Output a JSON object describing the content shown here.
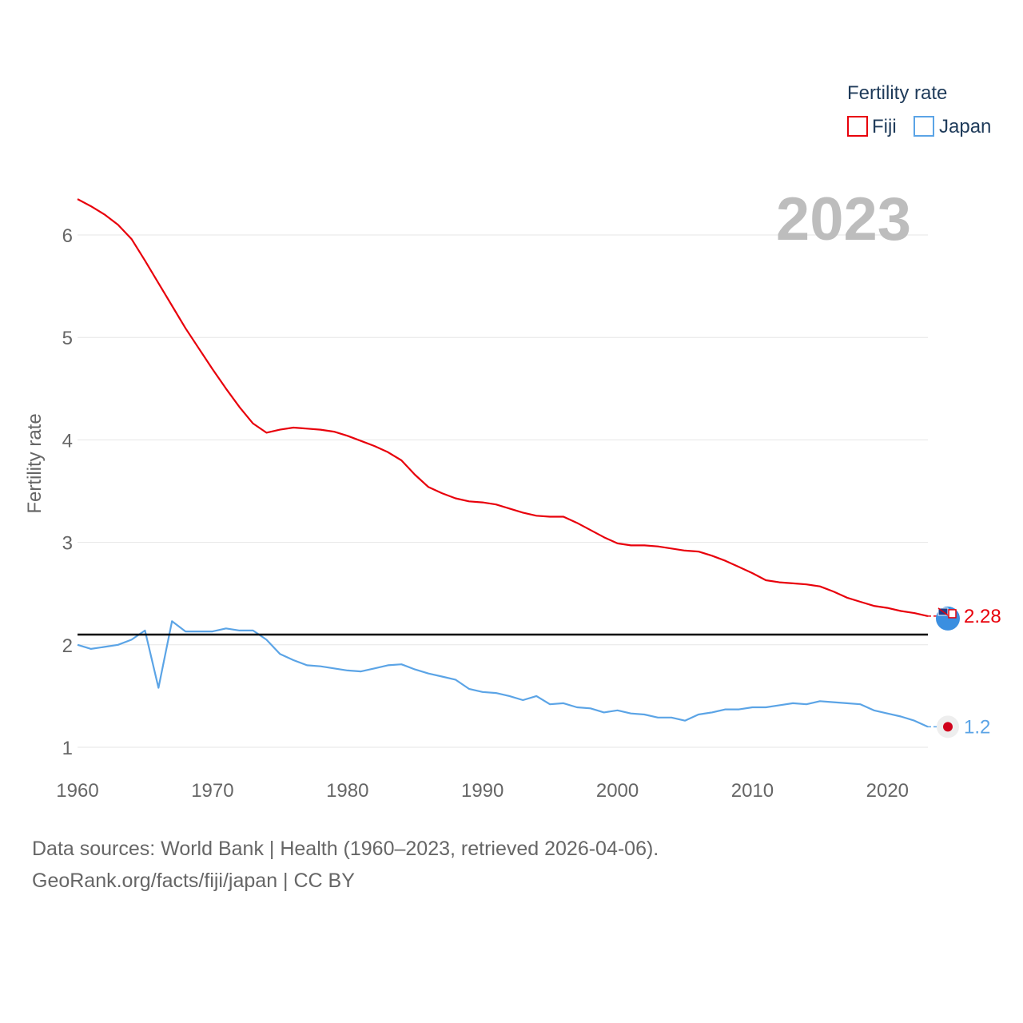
{
  "legend": {
    "title": "Fertility rate"
  },
  "year_label": "2023",
  "footer": {
    "sources": "Data sources: World Bank | Health (1960–2023, retrieved 2026-04-06).",
    "credit": "GeoRank.org/facts/fiji/japan | CC BY"
  },
  "colors": {
    "fiji": "#e8000b",
    "japan": "#5ba4e6",
    "reference": "#000000",
    "grid": "#e6e6e6",
    "axis_text": "#666666",
    "year": "#bdbdbd"
  },
  "chart_data": {
    "type": "line",
    "title": "",
    "xlabel": "",
    "ylabel": "Fertility rate",
    "xlim": [
      1960,
      2023
    ],
    "ylim": [
      0.75,
      6.75
    ],
    "x_ticks": [
      1960,
      1970,
      1980,
      1990,
      2000,
      2010,
      2020
    ],
    "y_ticks": [
      1,
      2,
      3,
      4,
      5,
      6
    ],
    "reference_line": 2.1,
    "x": [
      1960,
      1961,
      1962,
      1963,
      1964,
      1965,
      1966,
      1967,
      1968,
      1969,
      1970,
      1971,
      1972,
      1973,
      1974,
      1975,
      1976,
      1977,
      1978,
      1979,
      1980,
      1981,
      1982,
      1983,
      1984,
      1985,
      1986,
      1987,
      1988,
      1989,
      1990,
      1991,
      1992,
      1993,
      1994,
      1995,
      1996,
      1997,
      1998,
      1999,
      2000,
      2001,
      2002,
      2003,
      2004,
      2005,
      2006,
      2007,
      2008,
      2009,
      2010,
      2011,
      2012,
      2013,
      2014,
      2015,
      2016,
      2017,
      2018,
      2019,
      2020,
      2021,
      2022,
      2023
    ],
    "series": [
      {
        "name": "Fiji",
        "end_label": "2.28",
        "values": [
          6.35,
          6.28,
          6.2,
          6.1,
          5.96,
          5.75,
          5.53,
          5.31,
          5.09,
          4.89,
          4.69,
          4.5,
          4.32,
          4.16,
          4.07,
          4.1,
          4.12,
          4.11,
          4.1,
          4.08,
          4.04,
          3.99,
          3.94,
          3.88,
          3.8,
          3.66,
          3.54,
          3.48,
          3.43,
          3.4,
          3.39,
          3.37,
          3.33,
          3.29,
          3.26,
          3.25,
          3.25,
          3.19,
          3.12,
          3.05,
          2.99,
          2.97,
          2.97,
          2.96,
          2.94,
          2.92,
          2.91,
          2.87,
          2.82,
          2.76,
          2.7,
          2.63,
          2.61,
          2.6,
          2.59,
          2.57,
          2.52,
          2.46,
          2.42,
          2.38,
          2.36,
          2.33,
          2.31,
          2.28
        ]
      },
      {
        "name": "Japan",
        "end_label": "1.2",
        "values": [
          2.0,
          1.96,
          1.98,
          2.0,
          2.05,
          2.14,
          1.58,
          2.23,
          2.13,
          2.13,
          2.13,
          2.16,
          2.14,
          2.14,
          2.05,
          1.91,
          1.85,
          1.8,
          1.79,
          1.77,
          1.75,
          1.74,
          1.77,
          1.8,
          1.81,
          1.76,
          1.72,
          1.69,
          1.66,
          1.57,
          1.54,
          1.53,
          1.5,
          1.46,
          1.5,
          1.42,
          1.43,
          1.39,
          1.38,
          1.34,
          1.36,
          1.33,
          1.32,
          1.29,
          1.29,
          1.26,
          1.32,
          1.34,
          1.37,
          1.37,
          1.39,
          1.39,
          1.41,
          1.43,
          1.42,
          1.45,
          1.44,
          1.43,
          1.42,
          1.36,
          1.33,
          1.3,
          1.26,
          1.2
        ]
      }
    ]
  }
}
